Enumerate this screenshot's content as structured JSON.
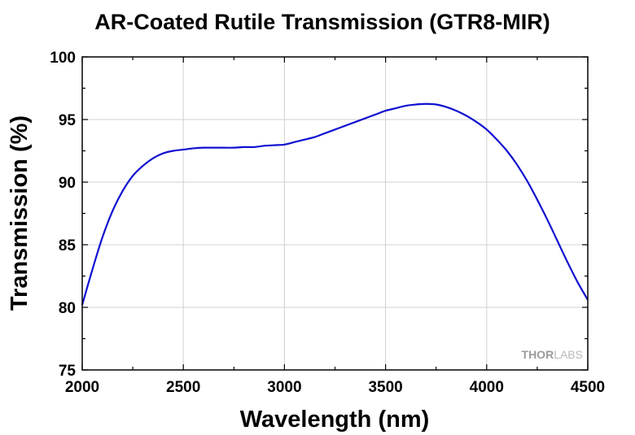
{
  "chart_data": {
    "type": "line",
    "title": "AR-Coated Rutile Transmission (GTR8-MIR)",
    "xlabel": "Wavelength (nm)",
    "ylabel": "Transmission (%)",
    "xlim": [
      2000,
      4500
    ],
    "ylim": [
      75,
      100
    ],
    "xticks": [
      2000,
      2500,
      3000,
      3500,
      4000,
      4500
    ],
    "yticks": [
      75,
      80,
      85,
      90,
      95,
      100
    ],
    "grid": true,
    "series": [
      {
        "color": "#1010d0",
        "x": [
          2000,
          2050,
          2100,
          2150,
          2200,
          2250,
          2300,
          2350,
          2400,
          2450,
          2500,
          2550,
          2600,
          2650,
          2700,
          2750,
          2800,
          2850,
          2900,
          2950,
          3000,
          3050,
          3100,
          3150,
          3200,
          3250,
          3300,
          3350,
          3400,
          3450,
          3500,
          3550,
          3600,
          3650,
          3700,
          3750,
          3800,
          3850,
          3900,
          3950,
          4000,
          4050,
          4100,
          4150,
          4200,
          4250,
          4300,
          4350,
          4400,
          4450,
          4500
        ],
        "y": [
          80.2,
          83.0,
          85.6,
          87.7,
          89.3,
          90.5,
          91.3,
          91.9,
          92.3,
          92.5,
          92.6,
          92.7,
          92.75,
          92.75,
          92.75,
          92.75,
          92.8,
          92.8,
          92.9,
          92.95,
          93.0,
          93.2,
          93.4,
          93.6,
          93.9,
          94.2,
          94.5,
          94.8,
          95.1,
          95.4,
          95.7,
          95.9,
          96.1,
          96.2,
          96.25,
          96.2,
          96.0,
          95.7,
          95.3,
          94.8,
          94.2,
          93.4,
          92.5,
          91.4,
          90.1,
          88.6,
          87.0,
          85.3,
          83.6,
          82.0,
          80.6
        ]
      }
    ]
  },
  "watermark": {
    "part1": "THOR",
    "part2": "LABS"
  }
}
